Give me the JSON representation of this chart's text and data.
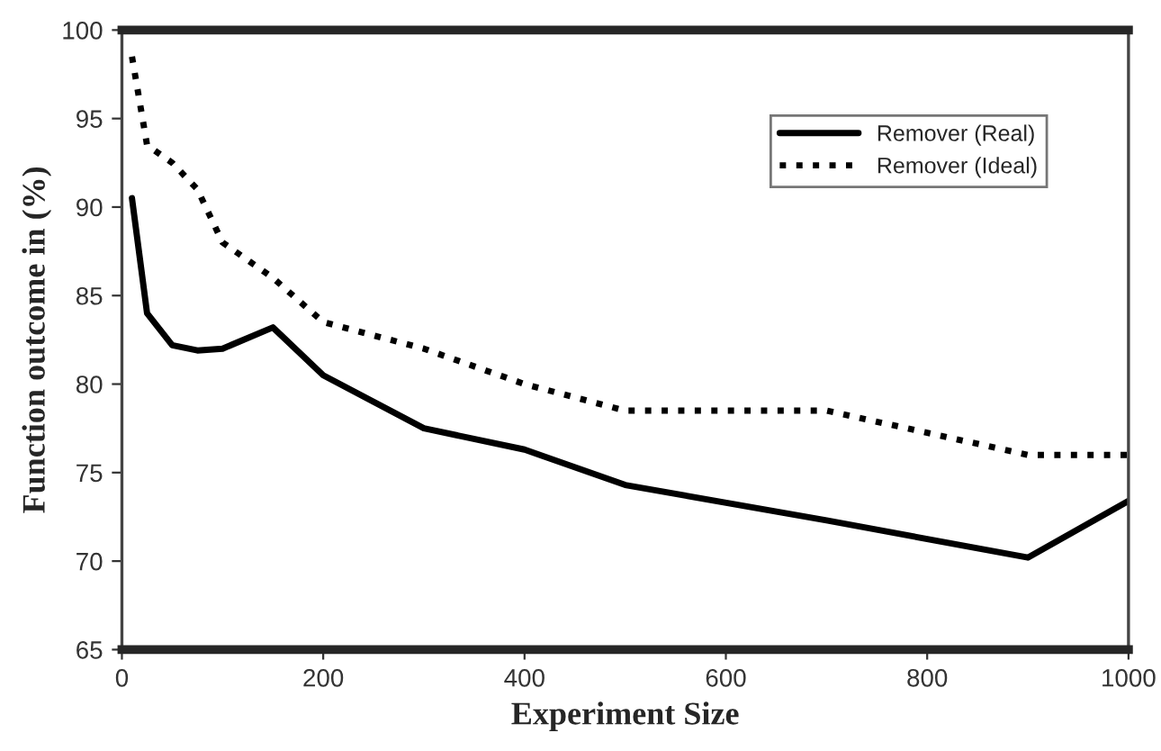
{
  "chart_data": {
    "type": "line",
    "xlabel": "Experiment Size",
    "ylabel": "Function outcome in (%)",
    "xlim": [
      0,
      1000
    ],
    "ylim": [
      65,
      100
    ],
    "xticks": [
      0,
      200,
      400,
      600,
      800,
      1000
    ],
    "yticks": [
      65,
      70,
      75,
      80,
      85,
      90,
      95,
      100
    ],
    "grid": false,
    "legend": "top right",
    "series": [
      {
        "name": "Remover (Real)",
        "color": "#000000",
        "line_style": "solid",
        "x": [
          10,
          25,
          50,
          75,
          100,
          150,
          200,
          300,
          400,
          500,
          700,
          900,
          1000
        ],
        "values": [
          90.5,
          84,
          82.2,
          81.9,
          82,
          83.2,
          80.5,
          77.5,
          76.3,
          74.3,
          72.3,
          70.2,
          73.4
        ]
      },
      {
        "name": "Remover (Ideal)",
        "color": "#000000",
        "line_style": "dotted",
        "x": [
          10,
          25,
          50,
          75,
          100,
          150,
          200,
          300,
          400,
          500,
          700,
          900,
          1000
        ],
        "values": [
          98.5,
          93.5,
          92.5,
          91,
          88,
          86,
          83.5,
          82,
          80,
          78.5,
          78.5,
          76,
          76
        ]
      }
    ]
  }
}
